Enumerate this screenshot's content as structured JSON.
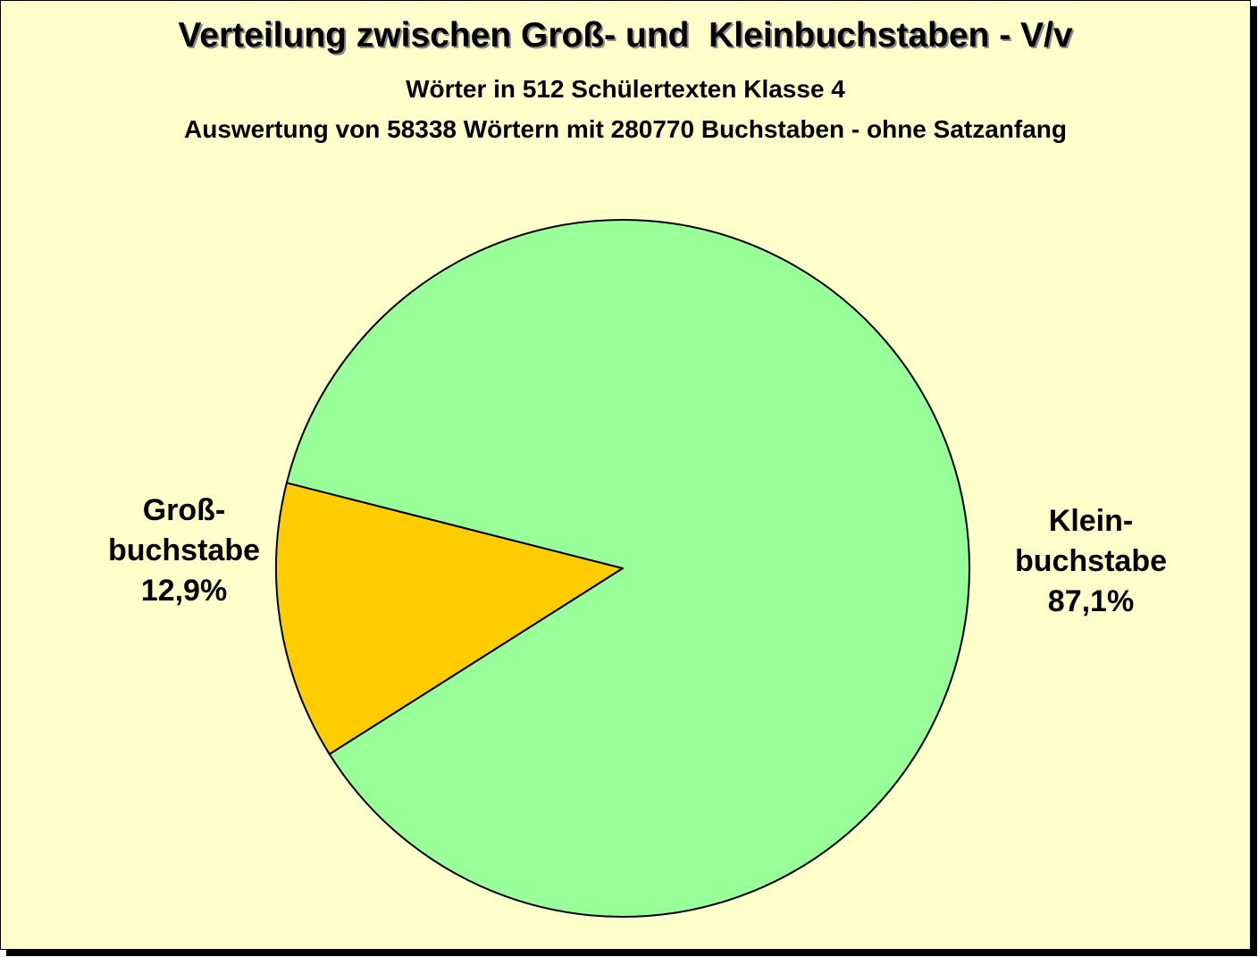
{
  "title": "Verteilung zwischen Groß- und  Kleinbuchstaben - V/v",
  "subtitle_1": "Wörter in 512 Schülertexten Klasse 4",
  "subtitle_2": "Auswertung von 58338 Wörtern mit 280770 Buchstaben - ohne Satzanfang",
  "colors": {
    "background": "#ffffcc",
    "gross": "#ffcc00",
    "klein": "#99ff99"
  },
  "chart_data": {
    "type": "pie",
    "title": "Verteilung zwischen Groß- und  Kleinbuchstaben - V/v",
    "slices": [
      {
        "key": "gross",
        "label_lines": [
          "Groß-",
          "buchstabe"
        ],
        "value": 12.9,
        "value_label": "12,9%",
        "color": "#ffcc00"
      },
      {
        "key": "klein",
        "label_lines": [
          "Klein-",
          "buchstabe"
        ],
        "value": 87.1,
        "value_label": "87,1%",
        "color": "#99ff99"
      }
    ]
  }
}
